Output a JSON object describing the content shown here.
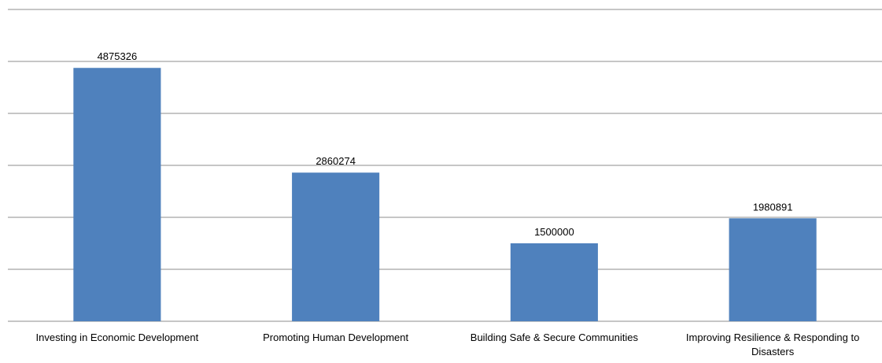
{
  "chart_data": {
    "type": "bar",
    "categories": [
      "Investing in Economic Development",
      "Promoting Human Development",
      "Building Safe & Secure Communities",
      "Improving Resilience & Responding to Disasters"
    ],
    "values": [
      4875326,
      2860274,
      1500000,
      1980891
    ],
    "color": "#4f81bd",
    "ylim": [
      0,
      6000000
    ],
    "yticks": [
      0,
      1000000,
      2000000,
      3000000,
      4000000,
      5000000,
      6000000
    ],
    "grid": true
  }
}
